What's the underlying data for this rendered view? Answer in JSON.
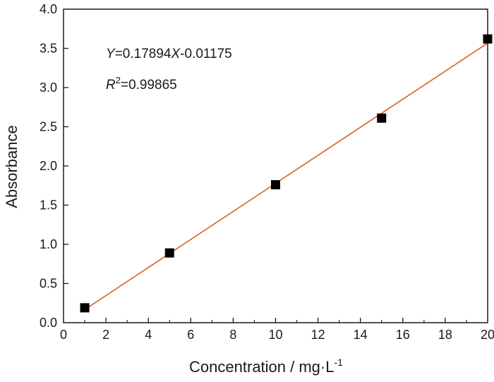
{
  "chart_data": {
    "type": "scatter",
    "xlabel": "Concentration / mg·L",
    "xlabel_superscript": "-1",
    "ylabel": "Absorbance",
    "xlim": [
      0,
      20
    ],
    "ylim": [
      0,
      4.0
    ],
    "xticks": [
      "0",
      "2",
      "4",
      "6",
      "8",
      "10",
      "12",
      "14",
      "16",
      "18",
      "20"
    ],
    "yticks": [
      "0.0",
      "0.5",
      "1.0",
      "1.5",
      "2.0",
      "2.5",
      "3.0",
      "3.5",
      "4.0"
    ],
    "series": [
      {
        "marker": "square",
        "color": "#000000",
        "x": [
          1,
          5,
          10,
          15,
          20
        ],
        "y": [
          0.19,
          0.89,
          1.76,
          2.61,
          3.62
        ]
      }
    ],
    "fit_line": {
      "slope": 0.17894,
      "intercept": -0.01175,
      "x_range": [
        1,
        20
      ],
      "color": "#e05a2b"
    },
    "annotations": {
      "eq_var_y": "Y",
      "eq_mid": "=0.17894",
      "eq_var_x": "X",
      "eq_end": "-0.01175",
      "r_var": "R",
      "r_sup": "2",
      "r_value": "=0.99865"
    },
    "grid": false,
    "legend": "none"
  }
}
